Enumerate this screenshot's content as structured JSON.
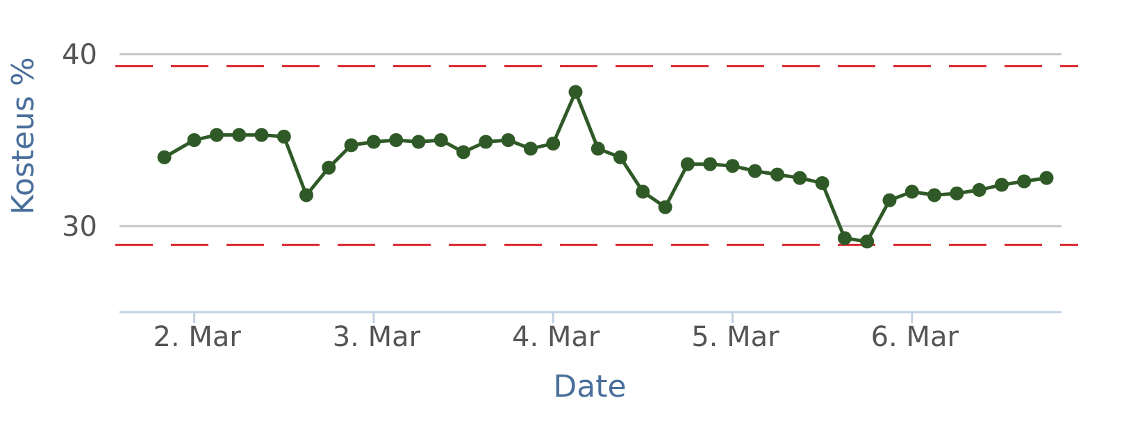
{
  "chart_data": {
    "type": "line",
    "title": "",
    "xlabel": "Date",
    "ylabel": "Kosteus %",
    "x_tick_labels": [
      "2. Mar",
      "3. Mar",
      "4. Mar",
      "5. Mar",
      "6. Mar"
    ],
    "x_ticks": [
      "2021-03-02",
      "2021-03-03",
      "2021-03-04",
      "2021-03-05",
      "2021-03-06"
    ],
    "xlim": [
      "2021-03-01 14:00",
      "2021-03-06 20:00"
    ],
    "y_ticks": [
      30,
      40
    ],
    "ylim": [
      25,
      41
    ],
    "grid": true,
    "legend": false,
    "colors": {
      "series": "#2f5a27",
      "threshold": "#d9222a",
      "grid": "#c4c4c4",
      "x_axis": "#c2d1e3",
      "axis_title": "#4a6f9b",
      "tick_label": "#555555"
    },
    "thresholds": [
      {
        "value": 39.3,
        "style": "dashed"
      },
      {
        "value": 28.9,
        "style": "dashed"
      }
    ],
    "series": [
      {
        "x": [
          "2021-03-01 20:00",
          "2021-03-02 00:00",
          "2021-03-02 03:00",
          "2021-03-02 06:00",
          "2021-03-02 09:00",
          "2021-03-02 12:00",
          "2021-03-02 15:00",
          "2021-03-02 18:00",
          "2021-03-02 21:00",
          "2021-03-03 00:00",
          "2021-03-03 03:00",
          "2021-03-03 06:00",
          "2021-03-03 09:00",
          "2021-03-03 12:00",
          "2021-03-03 15:00",
          "2021-03-03 18:00",
          "2021-03-03 21:00",
          "2021-03-04 00:00",
          "2021-03-04 03:00",
          "2021-03-04 06:00",
          "2021-03-04 09:00",
          "2021-03-04 12:00",
          "2021-03-04 15:00",
          "2021-03-04 18:00",
          "2021-03-04 21:00",
          "2021-03-05 00:00",
          "2021-03-05 03:00",
          "2021-03-05 06:00",
          "2021-03-05 09:00",
          "2021-03-05 12:00",
          "2021-03-05 15:00",
          "2021-03-05 18:00",
          "2021-03-05 21:00",
          "2021-03-06 00:00",
          "2021-03-06 03:00",
          "2021-03-06 06:00",
          "2021-03-06 09:00",
          "2021-03-06 12:00",
          "2021-03-06 15:00",
          "2021-03-06 18:00"
        ],
        "values": [
          34.0,
          35.0,
          35.3,
          35.3,
          35.3,
          35.2,
          31.8,
          33.4,
          34.7,
          34.9,
          35.0,
          34.9,
          35.0,
          34.3,
          34.9,
          35.0,
          34.5,
          34.8,
          37.8,
          34.5,
          34.0,
          32.0,
          31.1,
          33.6,
          33.6,
          33.5,
          33.2,
          33.0,
          32.8,
          32.5,
          29.3,
          29.1,
          31.5,
          32.0,
          31.8,
          31.9,
          32.1,
          32.4,
          32.6,
          32.8
        ]
      }
    ]
  }
}
